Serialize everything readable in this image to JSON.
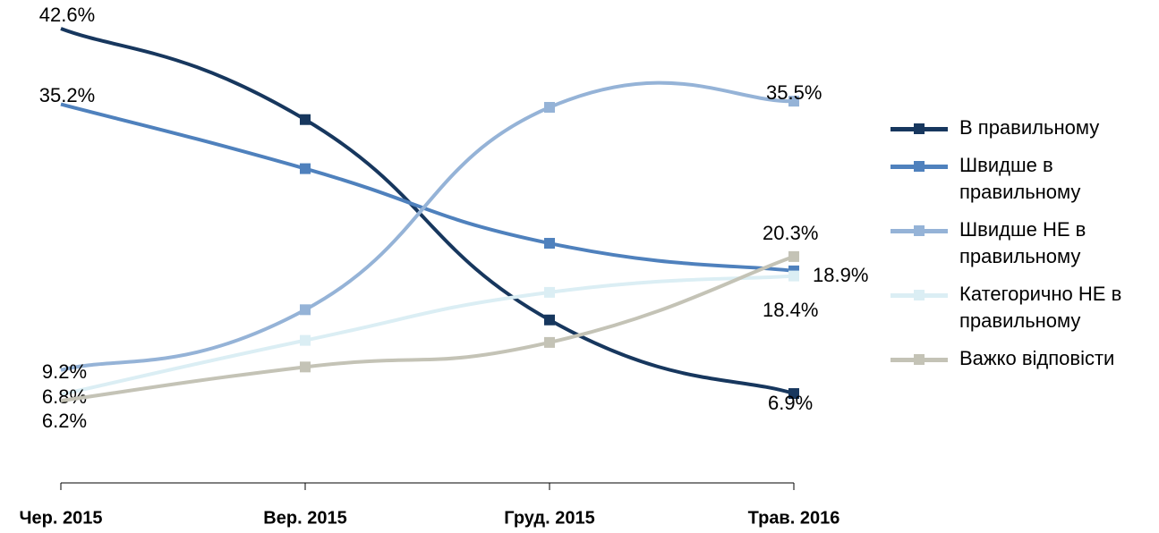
{
  "chart_data": {
    "type": "line",
    "categories": [
      "Чер. 2015",
      "Вер. 2015",
      "Груд. 2015",
      "Трав. 2016"
    ],
    "series": [
      {
        "name": "В правильному",
        "color": "#17375e",
        "values": [
          42.6,
          33.7,
          14.1,
          6.9
        ],
        "value_labels": [
          "42.6%",
          null,
          null,
          "6.9%"
        ]
      },
      {
        "name": "Швидше в правильному",
        "color": "#4f81bd",
        "values": [
          35.2,
          28.9,
          21.6,
          18.9
        ],
        "value_labels": [
          "35.2%",
          null,
          null,
          "18.9%"
        ]
      },
      {
        "name": "Швидше НЕ в правильному",
        "color": "#95b3d7",
        "values": [
          9.2,
          15.1,
          34.9,
          35.5
        ],
        "value_labels": [
          "9.2%",
          null,
          null,
          "35.5%"
        ]
      },
      {
        "name": "Категорично НЕ в правильному",
        "color": "#dbeef4",
        "values": [
          6.8,
          12.1,
          16.8,
          18.4
        ],
        "value_labels": [
          "6.8%",
          null,
          null,
          "18.4%"
        ]
      },
      {
        "name": "Важко відповісти",
        "color": "#c4c3b6",
        "values": [
          6.2,
          9.5,
          11.9,
          20.3
        ],
        "value_labels": [
          "6.2%",
          null,
          null,
          "20.3%"
        ]
      }
    ],
    "legend": "right"
  }
}
